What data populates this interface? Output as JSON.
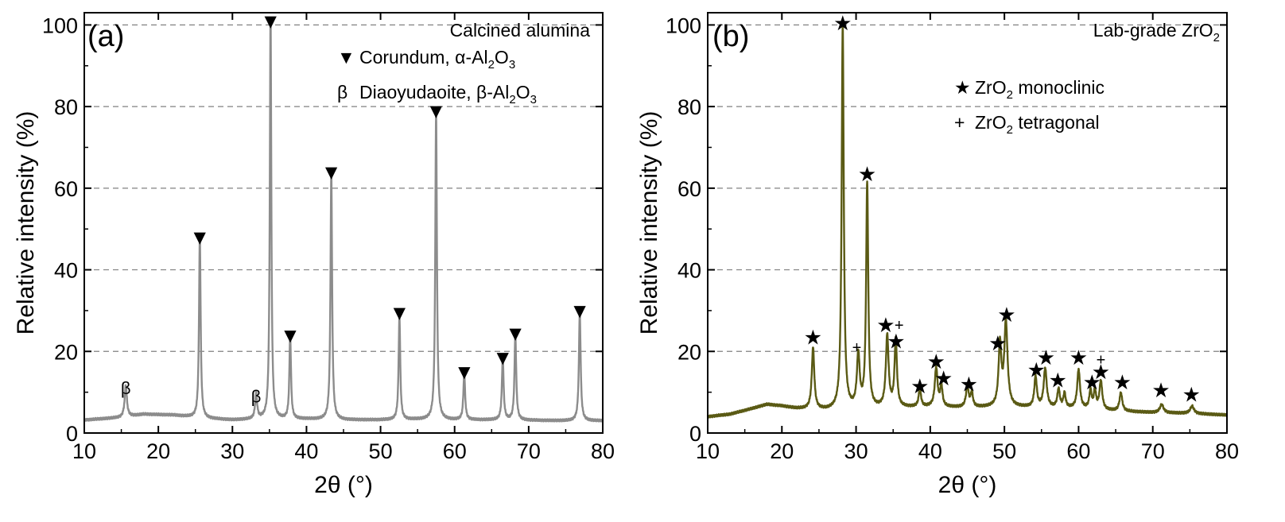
{
  "figure": {
    "panels": [
      {
        "id": "a",
        "label": "(a)",
        "sample": "Calcined alumina",
        "legend": [
          {
            "symbol": "▼",
            "symbol_name": "triangle-down-icon",
            "text": "Corundum, α-Al",
            "sub1": "2",
            "mid": "O",
            "sub2": "3"
          },
          {
            "symbol": "β",
            "symbol_name": "beta-symbol",
            "text": "Diaoyudaoite, β-Al",
            "sub1": "2",
            "mid": "O",
            "sub2": "3"
          }
        ]
      },
      {
        "id": "b",
        "label": "(b)",
        "sample": "Lab-grade ZrO",
        "sample_sub": "2",
        "legend": [
          {
            "symbol": "★",
            "symbol_name": "star-icon",
            "text": "ZrO",
            "sub1": "2",
            "mid": " monoclinic"
          },
          {
            "symbol": "+",
            "symbol_name": "plus-icon",
            "text": "ZrO",
            "sub1": "2",
            "mid": " tetragonal"
          }
        ]
      }
    ]
  },
  "chart_data": [
    {
      "type": "line",
      "panel": "a",
      "title": "",
      "xlabel": "2θ (°)",
      "ylabel": "Relative intensity (%)",
      "xlim": [
        10,
        80
      ],
      "ylim": [
        0,
        103
      ],
      "xticks": [
        10,
        20,
        30,
        40,
        50,
        60,
        70,
        80
      ],
      "yticks": [
        0,
        20,
        40,
        60,
        80,
        100
      ],
      "grid": "horizontal dashed",
      "line_color": "#8c8c8c",
      "series": [
        {
          "baseline": [
            [
              10,
              3.2
            ],
            [
              15,
              3.8
            ],
            [
              18,
              4.6
            ],
            [
              22,
              4.4
            ],
            [
              26,
              3.6
            ],
            [
              30,
              3.2
            ],
            [
              34,
              3.4
            ],
            [
              40,
              3.4
            ],
            [
              45,
              3.2
            ],
            [
              50,
              3.2
            ],
            [
              55,
              3.3
            ],
            [
              60,
              3.2
            ],
            [
              65,
              3.2
            ],
            [
              70,
              3.1
            ],
            [
              75,
              3.0
            ],
            [
              80,
              3.0
            ]
          ],
          "peaks": [
            {
              "x": 15.6,
              "y": 7.8,
              "w": 0.18
            },
            {
              "x": 25.6,
              "y": 44.5,
              "w": 0.13
            },
            {
              "x": 33.2,
              "y": 6.2,
              "w": 0.16
            },
            {
              "x": 35.15,
              "y": 100,
              "w": 0.12
            },
            {
              "x": 37.8,
              "y": 20.5,
              "w": 0.13
            },
            {
              "x": 43.35,
              "y": 60.5,
              "w": 0.13
            },
            {
              "x": 52.55,
              "y": 25.5,
              "w": 0.13
            },
            {
              "x": 57.5,
              "y": 75.5,
              "w": 0.13
            },
            {
              "x": 61.3,
              "y": 11.3,
              "w": 0.14
            },
            {
              "x": 66.5,
              "y": 15.0,
              "w": 0.14
            },
            {
              "x": 68.2,
              "y": 20.8,
              "w": 0.14
            },
            {
              "x": 76.9,
              "y": 26.5,
              "w": 0.14
            }
          ]
        }
      ],
      "annotations": [
        {
          "symbol": "▼",
          "name": "corundum-marker",
          "x": 25.6,
          "y": 48
        },
        {
          "symbol": "▼",
          "name": "corundum-marker",
          "x": 35.15,
          "y": 101
        },
        {
          "symbol": "▼",
          "name": "corundum-marker",
          "x": 37.8,
          "y": 24
        },
        {
          "symbol": "▼",
          "name": "corundum-marker",
          "x": 43.35,
          "y": 64
        },
        {
          "symbol": "▼",
          "name": "corundum-marker",
          "x": 52.55,
          "y": 29.5
        },
        {
          "symbol": "▼",
          "name": "corundum-marker",
          "x": 57.5,
          "y": 79
        },
        {
          "symbol": "▼",
          "name": "corundum-marker",
          "x": 61.3,
          "y": 15
        },
        {
          "symbol": "▼",
          "name": "corundum-marker",
          "x": 66.5,
          "y": 18.5
        },
        {
          "symbol": "▼",
          "name": "corundum-marker",
          "x": 68.2,
          "y": 24.5
        },
        {
          "symbol": "▼",
          "name": "corundum-marker",
          "x": 76.9,
          "y": 30
        },
        {
          "symbol": "β",
          "name": "diaoyudaoite-marker",
          "x": 15.6,
          "y": 11
        },
        {
          "symbol": "β",
          "name": "diaoyudaoite-marker",
          "x": 33.2,
          "y": 9
        }
      ]
    },
    {
      "type": "line",
      "panel": "b",
      "title": "",
      "xlabel": "2θ (°)",
      "ylabel": "Relative intensity (%)",
      "xlim": [
        10,
        80
      ],
      "ylim": [
        0,
        103
      ],
      "xticks": [
        10,
        20,
        30,
        40,
        50,
        60,
        70,
        80
      ],
      "yticks": [
        0,
        20,
        40,
        60,
        80,
        100
      ],
      "grid": "horizontal dashed",
      "line_color": "#5a5a14",
      "series": [
        {
          "baseline": [
            [
              10,
              4.0
            ],
            [
              13,
              4.6
            ],
            [
              16,
              6.0
            ],
            [
              18,
              7.0
            ],
            [
              20,
              6.6
            ],
            [
              22,
              6.0
            ],
            [
              26,
              5.6
            ],
            [
              30,
              5.8
            ],
            [
              35,
              6.2
            ],
            [
              40,
              6.4
            ],
            [
              45,
              6.2
            ],
            [
              50,
              6.4
            ],
            [
              55,
              6.2
            ],
            [
              60,
              6.0
            ],
            [
              65,
              5.4
            ],
            [
              70,
              5.0
            ],
            [
              75,
              4.8
            ],
            [
              80,
              4.4
            ]
          ],
          "peaks": [
            {
              "x": 24.2,
              "y": 15,
              "w": 0.2
            },
            {
              "x": 28.2,
              "y": 94,
              "w": 0.17
            },
            {
              "x": 30.3,
              "y": 13,
              "w": 0.22
            },
            {
              "x": 31.5,
              "y": 55,
              "w": 0.17
            },
            {
              "x": 34.2,
              "y": 17.5,
              "w": 0.22
            },
            {
              "x": 35.35,
              "y": 16.5,
              "w": 0.19
            },
            {
              "x": 38.6,
              "y": 4.5,
              "w": 0.18
            },
            {
              "x": 40.8,
              "y": 9.5,
              "w": 0.22
            },
            {
              "x": 41.5,
              "y": 5,
              "w": 0.18
            },
            {
              "x": 45.0,
              "y": 5,
              "w": 0.22
            },
            {
              "x": 45.6,
              "y": 3.5,
              "w": 0.18
            },
            {
              "x": 49.4,
              "y": 15,
              "w": 0.22
            },
            {
              "x": 50.2,
              "y": 20.5,
              "w": 0.26
            },
            {
              "x": 54.2,
              "y": 7.5,
              "w": 0.2
            },
            {
              "x": 55.5,
              "y": 9.5,
              "w": 0.24
            },
            {
              "x": 57.3,
              "y": 4.5,
              "w": 0.2
            },
            {
              "x": 58.1,
              "y": 3.5,
              "w": 0.18
            },
            {
              "x": 60.0,
              "y": 9.5,
              "w": 0.22
            },
            {
              "x": 61.6,
              "y": 4.5,
              "w": 0.18
            },
            {
              "x": 62.2,
              "y": 4.5,
              "w": 0.18
            },
            {
              "x": 63.0,
              "y": 7,
              "w": 0.22
            },
            {
              "x": 65.7,
              "y": 4.5,
              "w": 0.22
            },
            {
              "x": 71.2,
              "y": 2,
              "w": 0.3
            },
            {
              "x": 75.3,
              "y": 1.8,
              "w": 0.3
            }
          ]
        }
      ],
      "annotations": [
        {
          "symbol": "★",
          "name": "monoclinic-marker",
          "x": 24.2,
          "y": 23.5
        },
        {
          "symbol": "★",
          "name": "monoclinic-marker",
          "x": 28.2,
          "y": 100.5
        },
        {
          "symbol": "★",
          "name": "monoclinic-marker",
          "x": 31.5,
          "y": 63.5
        },
        {
          "symbol": "★",
          "name": "monoclinic-marker",
          "x": 34.0,
          "y": 26.5
        },
        {
          "symbol": "★",
          "name": "monoclinic-marker",
          "x": 35.4,
          "y": 22.5
        },
        {
          "symbol": "★",
          "name": "monoclinic-marker",
          "x": 38.6,
          "y": 11.5
        },
        {
          "symbol": "★",
          "name": "monoclinic-marker",
          "x": 40.8,
          "y": 17.5
        },
        {
          "symbol": "★",
          "name": "monoclinic-marker",
          "x": 41.8,
          "y": 13.5
        },
        {
          "symbol": "★",
          "name": "monoclinic-marker",
          "x": 45.2,
          "y": 12
        },
        {
          "symbol": "★",
          "name": "monoclinic-marker",
          "x": 49.1,
          "y": 22
        },
        {
          "symbol": "★",
          "name": "monoclinic-marker",
          "x": 50.3,
          "y": 29
        },
        {
          "symbol": "★",
          "name": "monoclinic-marker",
          "x": 54.3,
          "y": 15.5
        },
        {
          "symbol": "★",
          "name": "monoclinic-marker",
          "x": 55.6,
          "y": 18.5
        },
        {
          "symbol": "★",
          "name": "monoclinic-marker",
          "x": 57.2,
          "y": 13
        },
        {
          "symbol": "★",
          "name": "monoclinic-marker",
          "x": 60.0,
          "y": 18.5
        },
        {
          "symbol": "★",
          "name": "monoclinic-marker",
          "x": 61.8,
          "y": 12.5
        },
        {
          "symbol": "★",
          "name": "monoclinic-marker",
          "x": 63.0,
          "y": 15
        },
        {
          "symbol": "★",
          "name": "monoclinic-marker",
          "x": 65.9,
          "y": 12.5
        },
        {
          "symbol": "★",
          "name": "monoclinic-marker",
          "x": 71.1,
          "y": 10.5
        },
        {
          "symbol": "★",
          "name": "monoclinic-marker",
          "x": 75.2,
          "y": 9.5
        },
        {
          "symbol": "+",
          "name": "tetragonal-marker",
          "x": 30.1,
          "y": 21
        },
        {
          "symbol": "+",
          "name": "tetragonal-marker",
          "x": 35.8,
          "y": 26.5
        },
        {
          "symbol": "+",
          "name": "tetragonal-marker",
          "x": 63.0,
          "y": 18
        }
      ]
    }
  ]
}
